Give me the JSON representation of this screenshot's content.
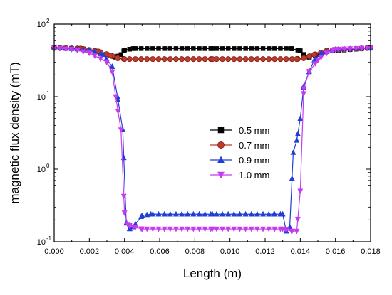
{
  "chart_data": {
    "type": "line",
    "xlabel": "Length (m)",
    "ylabel": "magnetic flux density (mT)",
    "xlim": [
      0,
      0.018
    ],
    "ylim": [
      0.1,
      100
    ],
    "yscale": "log",
    "x_ticks": [
      "0.000",
      "0.002",
      "0.004",
      "0.006",
      "0.008",
      "0.010",
      "0.012",
      "0.014",
      "0.016",
      "0.018"
    ],
    "y_ticks": [
      {
        "value": 0.1,
        "base": "10",
        "exp": "-1"
      },
      {
        "value": 1,
        "base": "10",
        "exp": "0"
      },
      {
        "value": 10,
        "base": "10",
        "exp": "1"
      },
      {
        "value": 100,
        "base": "10",
        "exp": "2"
      }
    ],
    "legend_position": "center-right",
    "series": [
      {
        "name": "0.5 mm",
        "color": "#000000",
        "marker": "square",
        "x": [
          0,
          0.0015,
          0.0025,
          0.003,
          0.0035,
          0.0038,
          0.004,
          0.0045,
          0.009,
          0.0135,
          0.014,
          0.0142,
          0.0145,
          0.015,
          0.0155,
          0.018
        ],
        "y": [
          47,
          46,
          42,
          38,
          35,
          38,
          44,
          46,
          46,
          46,
          43,
          38,
          35,
          38,
          42,
          47
        ]
      },
      {
        "name": "0.7 mm",
        "color": "#c0392b",
        "marker": "circle",
        "x": [
          0,
          0.0015,
          0.0025,
          0.0032,
          0.0036,
          0.004,
          0.009,
          0.0138,
          0.0142,
          0.0148,
          0.0155,
          0.018
        ],
        "y": [
          47,
          46,
          42,
          37,
          34,
          33,
          33,
          33,
          34,
          38,
          43,
          47
        ]
      },
      {
        "name": "0.9 mm",
        "color": "#1f3fd6",
        "marker": "triangle-up",
        "x": [
          0,
          0.001,
          0.002,
          0.0028,
          0.0033,
          0.0036,
          0.0039,
          0.0041,
          0.0043,
          0.0045,
          0.005,
          0.0055,
          0.009,
          0.0125,
          0.013,
          0.0132,
          0.0134,
          0.0136,
          0.0138,
          0.014,
          0.0142,
          0.0145,
          0.0148,
          0.0152,
          0.016,
          0.018
        ],
        "y": [
          47,
          46,
          44,
          38,
          26,
          10,
          3.5,
          0.18,
          0.15,
          0.16,
          0.23,
          0.24,
          0.24,
          0.24,
          0.24,
          0.14,
          0.16,
          1.7,
          2.5,
          5,
          14,
          22,
          32,
          40,
          45,
          47
        ]
      },
      {
        "name": "1.0 mm",
        "color": "#c63bf0",
        "marker": "triangle-down",
        "x": [
          0,
          0.001,
          0.002,
          0.003,
          0.0033,
          0.0035,
          0.0038,
          0.004,
          0.0042,
          0.0045,
          0.005,
          0.009,
          0.013,
          0.0135,
          0.0138,
          0.014,
          0.0142,
          0.0145,
          0.015,
          0.0155,
          0.016,
          0.018
        ],
        "y": [
          47,
          45,
          40,
          30,
          22,
          10,
          3.5,
          0.25,
          0.17,
          0.16,
          0.15,
          0.15,
          0.15,
          0.14,
          0.14,
          0.5,
          13,
          22,
          32,
          40,
          45,
          47
        ]
      }
    ]
  }
}
